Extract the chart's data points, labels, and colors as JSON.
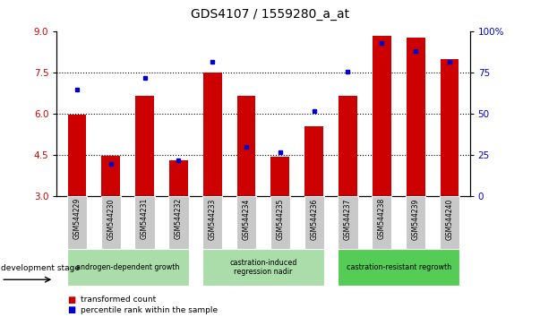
{
  "title": "GDS4107 / 1559280_a_at",
  "samples": [
    "GSM544229",
    "GSM544230",
    "GSM544231",
    "GSM544232",
    "GSM544233",
    "GSM544234",
    "GSM544235",
    "GSM544236",
    "GSM544237",
    "GSM544238",
    "GSM544239",
    "GSM544240"
  ],
  "transformed_count": [
    5.98,
    4.47,
    6.65,
    4.33,
    7.5,
    6.67,
    4.45,
    5.55,
    6.65,
    8.85,
    8.8,
    8.0
  ],
  "percentile_rank": [
    65,
    20,
    72,
    22,
    82,
    30,
    27,
    52,
    76,
    93,
    88,
    82
  ],
  "ylim_left": [
    3,
    9
  ],
  "ylim_right": [
    0,
    100
  ],
  "yticks_left": [
    3,
    4.5,
    6,
    7.5,
    9
  ],
  "yticks_right": [
    0,
    25,
    50,
    75,
    100
  ],
  "bar_color": "#cc0000",
  "dot_color": "#0000cc",
  "grid_lines": [
    4.5,
    6.0,
    7.5
  ],
  "stage_info": [
    {
      "label": "androgen-dependent growth",
      "start": 0,
      "end": 3,
      "color": "#aaddaa"
    },
    {
      "label": "castration-induced\nregression nadir",
      "start": 4,
      "end": 7,
      "color": "#aaddaa"
    },
    {
      "label": "castration-resistant regrowth",
      "start": 8,
      "end": 11,
      "color": "#55cc55"
    }
  ],
  "legend_bar_label": "transformed count",
  "legend_dot_label": "percentile rank within the sample",
  "dev_stage_label": "development stage"
}
